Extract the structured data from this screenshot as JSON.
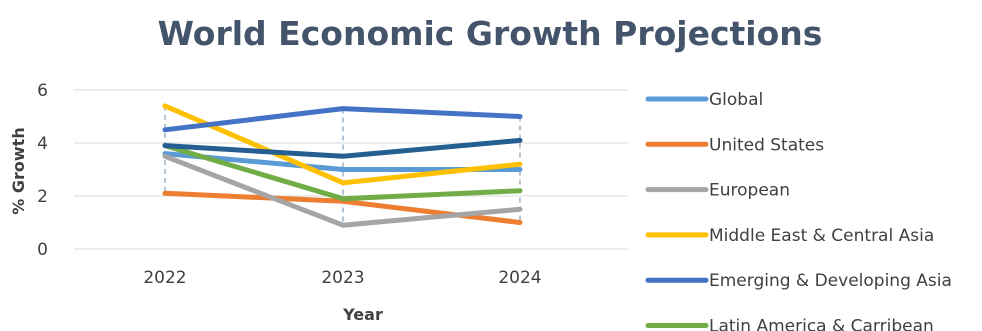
{
  "chart_data": {
    "type": "line",
    "title": "World Economic Growth Projections",
    "xlabel": "Year",
    "ylabel": "% Growth",
    "categories": [
      "2022",
      "2023",
      "2024"
    ],
    "ylim": [
      0,
      6
    ],
    "yticks": [
      0,
      2,
      4,
      6
    ],
    "grid": true,
    "drop_lines": true,
    "legend_position": "right",
    "series": [
      {
        "name": "Global",
        "values": [
          3.6,
          3.0,
          3.0
        ],
        "color": "#5b9bd5"
      },
      {
        "name": "United States",
        "values": [
          2.1,
          1.8,
          1.0
        ],
        "color": "#ed7d31"
      },
      {
        "name": "European",
        "values": [
          3.5,
          0.9,
          1.5
        ],
        "color": "#a5a5a5"
      },
      {
        "name": "Middle East & Central Asia",
        "values": [
          5.4,
          2.5,
          3.2
        ],
        "color": "#ffc000"
      },
      {
        "name": "Emerging & Developing Asia",
        "values": [
          4.5,
          5.3,
          5.0
        ],
        "color": "#4472c4"
      },
      {
        "name": "Latin America & Carribean",
        "values": [
          3.9,
          1.9,
          2.2
        ],
        "color": "#70ad47"
      },
      {
        "name": "",
        "values": [
          3.9,
          3.5,
          4.1
        ],
        "color": "#255e91"
      }
    ]
  }
}
